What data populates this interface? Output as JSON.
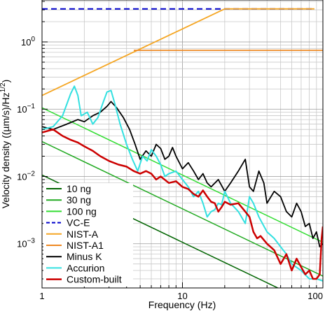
{
  "chart_data": {
    "type": "line",
    "xlabel": "Frequency (Hz)",
    "ylabel_main": "Velocity density ((µm/s)/Hz",
    "ylabel_sup": "1/2",
    "ylabel_close": ")",
    "xscale": "log",
    "yscale": "log",
    "xlim": [
      1,
      100
    ],
    "ylim": [
      0.00022,
      4.2
    ],
    "grid": true,
    "legend_position": "lower-left",
    "x_ticks": [
      {
        "value": 1,
        "label": "1"
      },
      {
        "value": 10,
        "label": "10"
      },
      {
        "value": 100,
        "label": "100"
      }
    ],
    "y_ticks": [
      {
        "value": 1,
        "base": "10",
        "exp": "0"
      },
      {
        "value": 0.1,
        "base": "10",
        "exp": "−1"
      },
      {
        "value": 0.01,
        "base": "10",
        "exp": "−2"
      },
      {
        "value": 0.001,
        "base": "10",
        "exp": "−3"
      }
    ],
    "series": [
      {
        "name": "10 ng",
        "color": "#006400",
        "dash": "solid",
        "width": 1.5,
        "points": [
          [
            1,
            0.0105
          ],
          [
            100,
            0.000105
          ]
        ]
      },
      {
        "name": "30 ng",
        "color": "#22aa22",
        "dash": "solid",
        "width": 1.5,
        "points": [
          [
            1,
            0.033
          ],
          [
            100,
            0.00033
          ]
        ]
      },
      {
        "name": "100 ng",
        "color": "#33dd33",
        "dash": "solid",
        "width": 1.5,
        "points": [
          [
            1,
            0.105
          ],
          [
            100,
            0.00105
          ]
        ]
      },
      {
        "name": "VC-E",
        "color": "#0000cc",
        "dash": "8,5",
        "width": 2,
        "points": [
          [
            1,
            3.1
          ],
          [
            87,
            3.1
          ]
        ]
      },
      {
        "name": "NIST-A",
        "color": "#f5a623",
        "dash": "solid",
        "width": 1.8,
        "points": [
          [
            1,
            0.16
          ],
          [
            20,
            3.1
          ],
          [
            87,
            3.1
          ]
        ]
      },
      {
        "name": "NIST-A1",
        "color": "#ee8822",
        "dash": "solid",
        "width": 1.8,
        "points": [
          [
            4.5,
            0.75
          ],
          [
            100,
            0.75
          ]
        ]
      },
      {
        "name": "Minus K",
        "color": "#000000",
        "dash": "solid",
        "width": 1.8,
        "points": [
          [
            1,
            0.055
          ],
          [
            1.2,
            0.05
          ],
          [
            1.5,
            0.06
          ],
          [
            1.8,
            0.07
          ],
          [
            2,
            0.065
          ],
          [
            2.3,
            0.08
          ],
          [
            2.6,
            0.09
          ],
          [
            2.9,
            0.11
          ],
          [
            3.1,
            0.13
          ],
          [
            3.4,
            0.105
          ],
          [
            3.8,
            0.075
          ],
          [
            4.2,
            0.05
          ],
          [
            4.6,
            0.03
          ],
          [
            5,
            0.018
          ],
          [
            5.5,
            0.024
          ],
          [
            6,
            0.02
          ],
          [
            6.5,
            0.03
          ],
          [
            7,
            0.026
          ],
          [
            7.5,
            0.018
          ],
          [
            8,
            0.02
          ],
          [
            8.5,
            0.027
          ],
          [
            9,
            0.02
          ],
          [
            10,
            0.013
          ],
          [
            11,
            0.016
          ],
          [
            12,
            0.012
          ],
          [
            13,
            0.009
          ],
          [
            14,
            0.011
          ],
          [
            15,
            0.008
          ],
          [
            16,
            0.007
          ],
          [
            18,
            0.009
          ],
          [
            20,
            0.006
          ],
          [
            22,
            0.008
          ],
          [
            25,
            0.012
          ],
          [
            28,
            0.018
          ],
          [
            30,
            0.007
          ],
          [
            32,
            0.006
          ],
          [
            35,
            0.012
          ],
          [
            38,
            0.008
          ],
          [
            40,
            0.004
          ],
          [
            45,
            0.006
          ],
          [
            50,
            0.005
          ],
          [
            55,
            0.003
          ],
          [
            60,
            0.0025
          ],
          [
            65,
            0.004
          ],
          [
            70,
            0.003
          ],
          [
            75,
            0.0018
          ],
          [
            80,
            0.002
          ],
          [
            85,
            0.0012
          ],
          [
            90,
            0.0015
          ],
          [
            95,
            0.0009
          ],
          [
            100,
            0.001
          ]
        ]
      },
      {
        "name": "Accurion",
        "color": "#33e0e0",
        "dash": "solid",
        "width": 2,
        "points": [
          [
            1,
            0.05
          ],
          [
            1.2,
            0.055
          ],
          [
            1.4,
            0.08
          ],
          [
            1.6,
            0.17
          ],
          [
            1.7,
            0.22
          ],
          [
            1.8,
            0.16
          ],
          [
            1.9,
            0.08
          ],
          [
            2.1,
            0.09
          ],
          [
            2.3,
            0.06
          ],
          [
            2.5,
            0.075
          ],
          [
            2.7,
            0.12
          ],
          [
            2.9,
            0.18
          ],
          [
            3.1,
            0.19
          ],
          [
            3.3,
            0.12
          ],
          [
            3.6,
            0.06
          ],
          [
            4,
            0.03
          ],
          [
            4.4,
            0.018
          ],
          [
            4.8,
            0.012
          ],
          [
            5.2,
            0.02
          ],
          [
            5.6,
            0.017
          ],
          [
            6,
            0.025
          ],
          [
            6.5,
            0.02
          ],
          [
            7,
            0.015
          ],
          [
            7.5,
            0.01
          ],
          [
            8,
            0.011
          ],
          [
            9,
            0.012
          ],
          [
            10,
            0.009
          ],
          [
            11,
            0.007
          ],
          [
            12,
            0.005
          ],
          [
            13,
            0.006
          ],
          [
            14,
            0.004
          ],
          [
            15,
            0.0025
          ],
          [
            16,
            0.003
          ],
          [
            17,
            0.0032
          ],
          [
            18,
            0.004
          ],
          [
            19,
            0.0038
          ],
          [
            20,
            0.006
          ],
          [
            22,
            0.004
          ],
          [
            25,
            0.003
          ],
          [
            28,
            0.002
          ],
          [
            30,
            0.005
          ],
          [
            32,
            0.004
          ],
          [
            35,
            0.0025
          ],
          [
            40,
            0.0015
          ],
          [
            45,
            0.0012
          ],
          [
            50,
            0.0009
          ],
          [
            55,
            0.0007
          ],
          [
            60,
            0.0005
          ],
          [
            70,
            0.0004
          ],
          [
            80,
            0.0003
          ],
          [
            90,
            0.0003
          ],
          [
            100,
            0.00028
          ]
        ]
      },
      {
        "name": "Custom-built",
        "color": "#cc0000",
        "dash": "solid",
        "width": 2.5,
        "points": [
          [
            1,
            0.045
          ],
          [
            1.2,
            0.05
          ],
          [
            1.4,
            0.04
          ],
          [
            1.6,
            0.035
          ],
          [
            1.8,
            0.032
          ],
          [
            2,
            0.028
          ],
          [
            2.3,
            0.024
          ],
          [
            2.6,
            0.02
          ],
          [
            3,
            0.017
          ],
          [
            3.5,
            0.015
          ],
          [
            4,
            0.014
          ],
          [
            4.5,
            0.012
          ],
          [
            5,
            0.011
          ],
          [
            5.5,
            0.012
          ],
          [
            6,
            0.011
          ],
          [
            6.5,
            0.009
          ],
          [
            7,
            0.01
          ],
          [
            8,
            0.008
          ],
          [
            9,
            0.0085
          ],
          [
            10,
            0.007
          ],
          [
            11,
            0.0065
          ],
          [
            12,
            0.0055
          ],
          [
            13,
            0.005
          ],
          [
            14,
            0.0062
          ],
          [
            15,
            0.005
          ],
          [
            16,
            0.0042
          ],
          [
            17,
            0.004
          ],
          [
            18,
            0.003
          ],
          [
            19,
            0.0035
          ],
          [
            20,
            0.0042
          ],
          [
            22,
            0.0038
          ],
          [
            25,
            0.004
          ],
          [
            28,
            0.003
          ],
          [
            30,
            0.0025
          ],
          [
            32,
            0.0015
          ],
          [
            34,
            0.0012
          ],
          [
            36,
            0.0013
          ],
          [
            40,
            0.001
          ],
          [
            45,
            0.0008
          ],
          [
            50,
            0.0005
          ],
          [
            55,
            0.0007
          ],
          [
            60,
            0.0004
          ],
          [
            65,
            0.0006
          ],
          [
            70,
            0.00045
          ],
          [
            75,
            0.00035
          ],
          [
            80,
            0.0004
          ],
          [
            85,
            0.0003
          ],
          [
            90,
            0.0003
          ],
          [
            95,
            0.00035
          ],
          [
            98,
            0.0012
          ],
          [
            100,
            0.0018
          ]
        ]
      }
    ]
  }
}
